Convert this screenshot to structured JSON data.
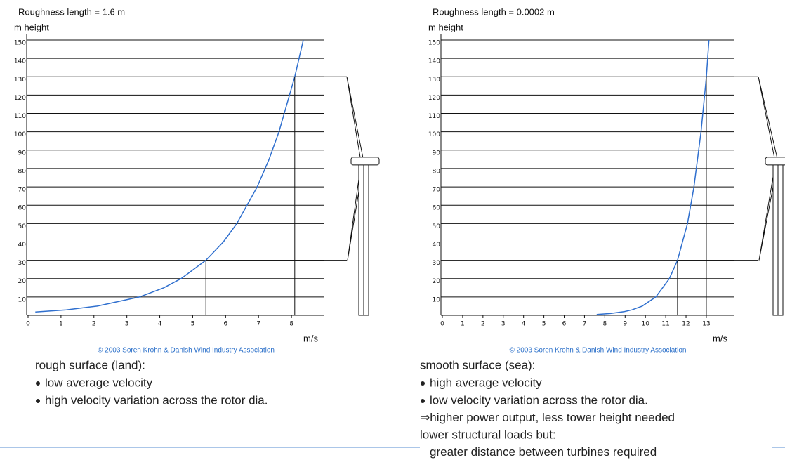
{
  "chart_data": [
    {
      "type": "line",
      "title": "Roughness length = 1.6 m",
      "y_label": "m height",
      "x_label": "m/s",
      "credit": "© 2003 Soren Krohn & Danish Wind Industry Association",
      "x": [
        0.22,
        1.16,
        2.1,
        3.38,
        4.12,
        4.65,
        5.4,
        5.93,
        6.34,
        6.96,
        7.32,
        7.62,
        8.1,
        8.36
      ],
      "series": [
        {
          "color": "#2f6fce",
          "values": [
            1.8,
            3,
            5,
            10,
            15,
            20,
            30,
            40,
            50,
            70,
            85,
            100,
            130,
            150
          ]
        }
      ],
      "rotor": [
        30,
        130
      ],
      "xlim": [
        0,
        9
      ],
      "ylim": [
        0,
        150
      ],
      "xticks": [
        0,
        1,
        2,
        3,
        4,
        5,
        6,
        7,
        8
      ],
      "yticks": [
        10,
        20,
        30,
        40,
        50,
        60,
        70,
        80,
        90,
        100,
        110,
        120,
        130,
        140,
        150
      ],
      "grid": true
    },
    {
      "type": "line",
      "title": "Roughness length = 0.0002 m",
      "y_label": "m height",
      "x_label": "m/s",
      "credit": "© 2003 Soren Krohn & Danish Wind Industry Association",
      "x": [
        7.6,
        8.27,
        8.95,
        9.34,
        9.84,
        10.51,
        11.18,
        11.58,
        12.07,
        12.39,
        12.74,
        13,
        13.13
      ],
      "series": [
        {
          "color": "#2f6fce",
          "values": [
            0.5,
            1,
            2,
            3,
            5,
            10,
            20,
            30,
            50,
            70,
            100,
            130,
            150
          ]
        }
      ],
      "rotor": [
        30,
        130
      ],
      "xlim": [
        0,
        14.35
      ],
      "ylim": [
        0,
        150
      ],
      "xticks": [
        0,
        1,
        2,
        3,
        4,
        5,
        6,
        7,
        8,
        9,
        10,
        11,
        12,
        13
      ],
      "yticks": [
        10,
        20,
        30,
        40,
        50,
        60,
        70,
        80,
        90,
        100,
        110,
        120,
        130,
        140,
        150
      ],
      "grid": true
    }
  ],
  "notes": [
    {
      "heading": "rough surface (land):",
      "items": [
        "low average velocity",
        "high velocity variation across the rotor dia."
      ],
      "after": [],
      "indented": []
    },
    {
      "heading": "smooth surface (sea):",
      "items": [
        "high average velocity",
        "low velocity variation across the rotor dia."
      ],
      "after": [
        "⇒higher power output, less tower height needed",
        "lower structural loads but:"
      ],
      "indented": [
        "greater distance between turbines required"
      ]
    }
  ]
}
